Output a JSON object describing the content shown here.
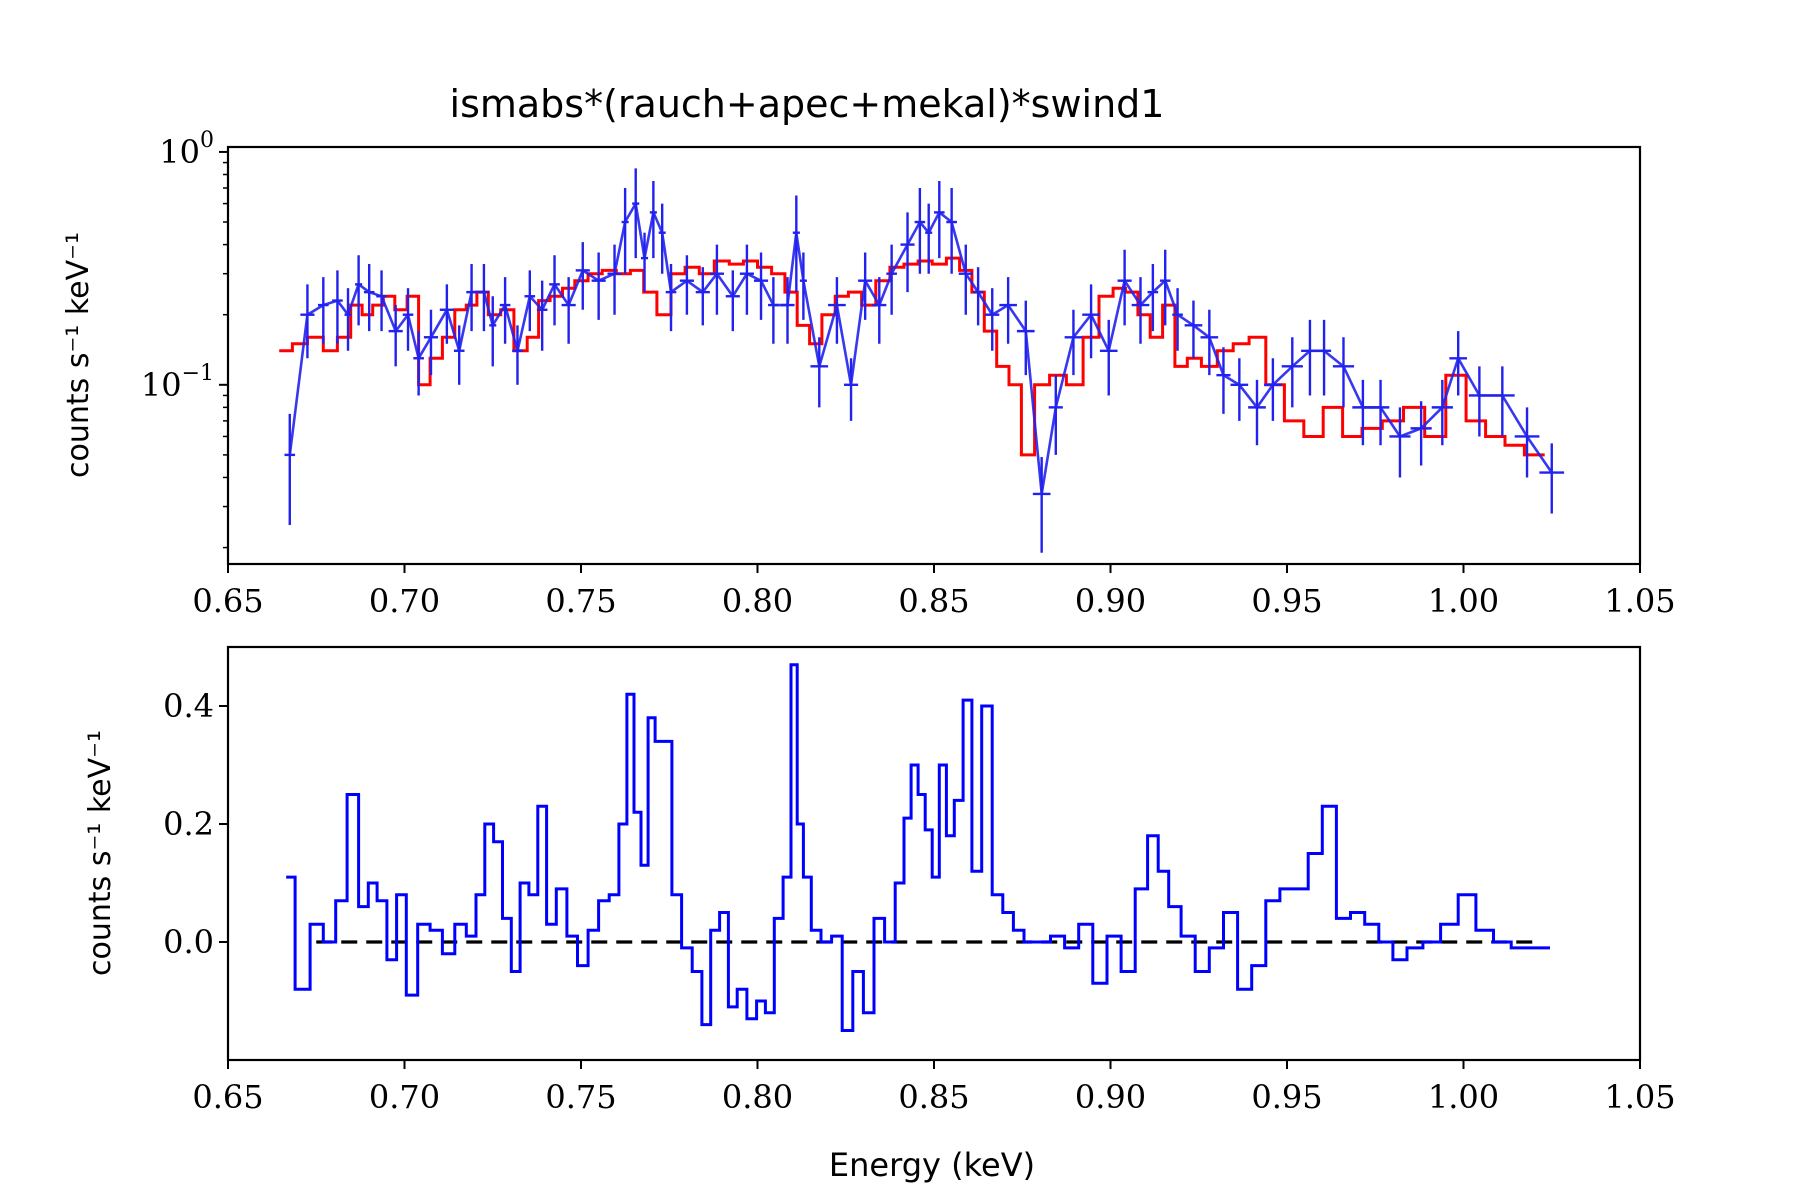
{
  "figure_title": "ismabs*(rauch+apec+mekal)*swind1",
  "chart_data": [
    {
      "type": "line",
      "title": "ismabs*(rauch+apec+mekal)*swind1",
      "xlabel": "",
      "ylabel": "counts s⁻¹ keV⁻¹",
      "yscale": "log",
      "xlim": [
        0.65,
        1.05
      ],
      "ylim": [
        0.017,
        1.05
      ],
      "x_ticks": [
        "0.65",
        "0.70",
        "0.75",
        "0.80",
        "0.85",
        "0.90",
        "0.95",
        "1.00",
        "1.05"
      ],
      "y_ticks": [
        {
          "base": "10",
          "exp": "0",
          "value": 1.0
        },
        {
          "base": "10",
          "exp": "−1",
          "value": 0.1
        }
      ],
      "colors": {
        "data": "#2222ee",
        "model": "#ff0000"
      },
      "series": [
        {
          "kind": "data",
          "x": [
            0.6675,
            0.6725,
            0.677,
            0.681,
            0.684,
            0.687,
            0.69,
            0.6935,
            0.6975,
            0.701,
            0.704,
            0.7075,
            0.712,
            0.7155,
            0.719,
            0.7225,
            0.725,
            0.7285,
            0.732,
            0.7355,
            0.739,
            0.7425,
            0.7465,
            0.7505,
            0.755,
            0.7595,
            0.7625,
            0.7655,
            0.768,
            0.7705,
            0.773,
            0.7755,
            0.78,
            0.7845,
            0.7885,
            0.793,
            0.797,
            0.801,
            0.8045,
            0.8085,
            0.811,
            0.813,
            0.8175,
            0.8225,
            0.8265,
            0.8305,
            0.8345,
            0.838,
            0.8425,
            0.846,
            0.8485,
            0.8515,
            0.855,
            0.859,
            0.8625,
            0.8665,
            0.871,
            0.876,
            0.8805,
            0.8845,
            0.8895,
            0.8945,
            0.8995,
            0.904,
            0.9085,
            0.912,
            0.9155,
            0.919,
            0.9235,
            0.928,
            0.932,
            0.9365,
            0.9415,
            0.946,
            0.9515,
            0.9565,
            0.9605,
            0.966,
            0.9715,
            0.9765,
            0.982,
            0.988,
            0.994,
            0.9985,
            1.0045,
            1.011,
            1.018,
            1.025
          ],
          "y": [
            0.05,
            0.2,
            0.22,
            0.23,
            0.2,
            0.27,
            0.25,
            0.24,
            0.17,
            0.2,
            0.13,
            0.16,
            0.21,
            0.14,
            0.25,
            0.25,
            0.18,
            0.22,
            0.14,
            0.24,
            0.21,
            0.27,
            0.22,
            0.31,
            0.28,
            0.3,
            0.5,
            0.6,
            0.35,
            0.55,
            0.45,
            0.25,
            0.28,
            0.25,
            0.3,
            0.24,
            0.3,
            0.28,
            0.22,
            0.22,
            0.45,
            0.28,
            0.12,
            0.22,
            0.1,
            0.28,
            0.22,
            0.3,
            0.4,
            0.5,
            0.45,
            0.55,
            0.5,
            0.3,
            0.25,
            0.2,
            0.22,
            0.17,
            0.034,
            0.08,
            0.16,
            0.2,
            0.14,
            0.28,
            0.22,
            0.25,
            0.28,
            0.2,
            0.18,
            0.16,
            0.11,
            0.1,
            0.08,
            0.1,
            0.12,
            0.14,
            0.14,
            0.12,
            0.08,
            0.08,
            0.06,
            0.065,
            0.08,
            0.13,
            0.09,
            0.09,
            0.06,
            0.042
          ],
          "yerr": [
            0.025,
            0.07,
            0.07,
            0.08,
            0.06,
            0.09,
            0.08,
            0.07,
            0.05,
            0.06,
            0.04,
            0.05,
            0.06,
            0.04,
            0.08,
            0.08,
            0.06,
            0.07,
            0.04,
            0.07,
            0.07,
            0.09,
            0.07,
            0.1,
            0.09,
            0.1,
            0.2,
            0.25,
            0.1,
            0.2,
            0.15,
            0.08,
            0.08,
            0.07,
            0.1,
            0.07,
            0.1,
            0.09,
            0.07,
            0.07,
            0.2,
            0.09,
            0.04,
            0.07,
            0.03,
            0.09,
            0.07,
            0.1,
            0.15,
            0.2,
            0.15,
            0.2,
            0.2,
            0.1,
            0.07,
            0.06,
            0.07,
            0.06,
            0.015,
            0.03,
            0.05,
            0.07,
            0.05,
            0.1,
            0.07,
            0.08,
            0.1,
            0.06,
            0.05,
            0.05,
            0.035,
            0.03,
            0.025,
            0.03,
            0.04,
            0.05,
            0.05,
            0.04,
            0.025,
            0.025,
            0.02,
            0.02,
            0.025,
            0.04,
            0.03,
            0.03,
            0.02,
            0.014
          ],
          "xerr": [
            0.0015,
            0.002,
            0.0015,
            0.0015,
            0.001,
            0.001,
            0.0015,
            0.0015,
            0.002,
            0.0015,
            0.0015,
            0.002,
            0.002,
            0.0015,
            0.0015,
            0.0015,
            0.001,
            0.0015,
            0.0015,
            0.0015,
            0.0015,
            0.0015,
            0.002,
            0.002,
            0.002,
            0.002,
            0.001,
            0.001,
            0.001,
            0.001,
            0.001,
            0.0015,
            0.002,
            0.002,
            0.002,
            0.002,
            0.002,
            0.002,
            0.0015,
            0.002,
            0.001,
            0.001,
            0.0025,
            0.0025,
            0.002,
            0.002,
            0.002,
            0.0015,
            0.002,
            0.0015,
            0.001,
            0.0015,
            0.0015,
            0.002,
            0.0015,
            0.002,
            0.0025,
            0.0025,
            0.0025,
            0.002,
            0.0025,
            0.0025,
            0.0025,
            0.002,
            0.0025,
            0.0015,
            0.0015,
            0.0015,
            0.0025,
            0.0025,
            0.002,
            0.0025,
            0.0025,
            0.0025,
            0.003,
            0.0025,
            0.002,
            0.003,
            0.003,
            0.0025,
            0.003,
            0.003,
            0.003,
            0.0025,
            0.003,
            0.0035,
            0.0035,
            0.0035
          ]
        },
        {
          "kind": "model",
          "x": [
            0.6665,
            0.67,
            0.675,
            0.679,
            0.683,
            0.6865,
            0.6895,
            0.6925,
            0.6955,
            0.699,
            0.7025,
            0.7055,
            0.709,
            0.7125,
            0.716,
            0.719,
            0.722,
            0.7255,
            0.729,
            0.733,
            0.7365,
            0.7395,
            0.743,
            0.7465,
            0.75,
            0.754,
            0.758,
            0.762,
            0.766,
            0.7695,
            0.7735,
            0.7775,
            0.7815,
            0.7855,
            0.79,
            0.794,
            0.798,
            0.802,
            0.806,
            0.8095,
            0.813,
            0.8165,
            0.82,
            0.824,
            0.8275,
            0.8315,
            0.8355,
            0.8395,
            0.8435,
            0.8475,
            0.8515,
            0.8555,
            0.859,
            0.8625,
            0.866,
            0.8695,
            0.873,
            0.8765,
            0.8805,
            0.885,
            0.89,
            0.8945,
            0.899,
            0.9025,
            0.906,
            0.9095,
            0.913,
            0.9165,
            0.92,
            0.9235,
            0.928,
            0.9325,
            0.937,
            0.9415,
            0.9465,
            0.952,
            0.9575,
            0.963,
            0.9685,
            0.974,
            0.98,
            0.986,
            0.992,
            0.998,
            1.0035,
            1.009,
            1.0145,
            1.02
          ],
          "y": [
            0.14,
            0.15,
            0.16,
            0.14,
            0.16,
            0.22,
            0.2,
            0.22,
            0.24,
            0.21,
            0.24,
            0.1,
            0.13,
            0.16,
            0.21,
            0.22,
            0.25,
            0.2,
            0.21,
            0.14,
            0.16,
            0.23,
            0.24,
            0.26,
            0.28,
            0.3,
            0.31,
            0.3,
            0.31,
            0.25,
            0.2,
            0.3,
            0.32,
            0.3,
            0.34,
            0.33,
            0.34,
            0.32,
            0.3,
            0.25,
            0.18,
            0.15,
            0.2,
            0.24,
            0.25,
            0.22,
            0.28,
            0.32,
            0.33,
            0.34,
            0.33,
            0.35,
            0.31,
            0.25,
            0.17,
            0.12,
            0.1,
            0.05,
            0.1,
            0.11,
            0.1,
            0.16,
            0.24,
            0.26,
            0.25,
            0.2,
            0.16,
            0.22,
            0.12,
            0.13,
            0.12,
            0.14,
            0.15,
            0.16,
            0.1,
            0.07,
            0.06,
            0.08,
            0.06,
            0.065,
            0.07,
            0.08,
            0.06,
            0.11,
            0.07,
            0.06,
            0.055,
            0.05
          ]
        }
      ]
    },
    {
      "type": "line",
      "title": "",
      "xlabel": "Energy (keV)",
      "ylabel": "counts s⁻¹ keV⁻¹",
      "yscale": "linear",
      "xlim": [
        0.65,
        1.05
      ],
      "ylim": [
        -0.2,
        0.5
      ],
      "x_ticks": [
        "0.65",
        "0.70",
        "0.75",
        "0.80",
        "0.85",
        "0.90",
        "0.95",
        "1.00",
        "1.05"
      ],
      "y_ticks": [
        {
          "label": "0.0",
          "value": 0.0
        },
        {
          "label": "0.2",
          "value": 0.2
        },
        {
          "label": "0.4",
          "value": 0.4
        }
      ],
      "colors": {
        "residuals": "#0000ff",
        "zero_line": "#000000"
      },
      "zero_line": {
        "y": 0.0,
        "x": [
          0.675,
          1.02
        ],
        "style": "dashed"
      },
      "series": [
        {
          "kind": "residuals",
          "x": [
            0.6665,
            0.6715,
            0.675,
            0.679,
            0.682,
            0.6855,
            0.6885,
            0.691,
            0.6935,
            0.6965,
            0.699,
            0.702,
            0.7055,
            0.709,
            0.7125,
            0.716,
            0.719,
            0.7215,
            0.724,
            0.7265,
            0.729,
            0.7315,
            0.734,
            0.7365,
            0.739,
            0.7415,
            0.7445,
            0.7475,
            0.7505,
            0.7535,
            0.7565,
            0.7595,
            0.762,
            0.764,
            0.766,
            0.768,
            0.77,
            0.772,
            0.7745,
            0.777,
            0.78,
            0.783,
            0.7855,
            0.788,
            0.7905,
            0.793,
            0.7955,
            0.7985,
            0.801,
            0.8035,
            0.806,
            0.8085,
            0.8105,
            0.812,
            0.814,
            0.8165,
            0.8195,
            0.8225,
            0.8255,
            0.8285,
            0.8315,
            0.8345,
            0.8375,
            0.8405,
            0.8425,
            0.8445,
            0.8465,
            0.8485,
            0.8505,
            0.8525,
            0.8545,
            0.857,
            0.8595,
            0.862,
            0.865,
            0.868,
            0.871,
            0.874,
            0.877,
            0.881,
            0.885,
            0.889,
            0.893,
            0.897,
            0.901,
            0.905,
            0.909,
            0.912,
            0.915,
            0.918,
            0.922,
            0.926,
            0.93,
            0.934,
            0.938,
            0.942,
            0.946,
            0.95,
            0.954,
            0.958,
            0.962,
            0.966,
            0.97,
            0.974,
            0.978,
            0.982,
            0.986,
            0.991,
            0.996,
            1.001,
            1.006,
            1.011,
            1.016,
            1.022
          ],
          "y": [
            0.11,
            -0.08,
            0.03,
            0.0,
            0.07,
            0.25,
            0.06,
            0.1,
            0.07,
            -0.03,
            0.08,
            -0.09,
            0.03,
            0.02,
            -0.02,
            0.03,
            0.01,
            0.08,
            0.2,
            0.17,
            0.04,
            -0.05,
            0.1,
            0.08,
            0.23,
            0.03,
            0.09,
            0.01,
            -0.04,
            0.02,
            0.07,
            0.08,
            0.2,
            0.42,
            0.22,
            0.13,
            0.38,
            0.34,
            0.34,
            0.08,
            -0.01,
            -0.05,
            -0.14,
            0.02,
            0.05,
            -0.11,
            -0.08,
            -0.13,
            -0.1,
            -0.12,
            0.04,
            0.11,
            0.47,
            0.2,
            0.11,
            0.02,
            0.0,
            0.01,
            -0.15,
            -0.05,
            -0.12,
            0.04,
            0.0,
            0.1,
            0.21,
            0.3,
            0.25,
            0.19,
            0.11,
            0.3,
            0.18,
            0.24,
            0.41,
            0.12,
            0.4,
            0.08,
            0.05,
            0.02,
            0.0,
            0.0,
            0.01,
            -0.01,
            0.03,
            -0.07,
            0.01,
            -0.05,
            0.09,
            0.18,
            0.12,
            0.06,
            0.01,
            -0.05,
            -0.01,
            0.05,
            -0.08,
            -0.04,
            0.07,
            0.09,
            0.09,
            0.15,
            0.23,
            0.04,
            0.05,
            0.03,
            0.0,
            -0.03,
            -0.01,
            0.0,
            0.03,
            0.08,
            0.02,
            0.0,
            -0.01,
            -0.01
          ]
        }
      ]
    }
  ]
}
